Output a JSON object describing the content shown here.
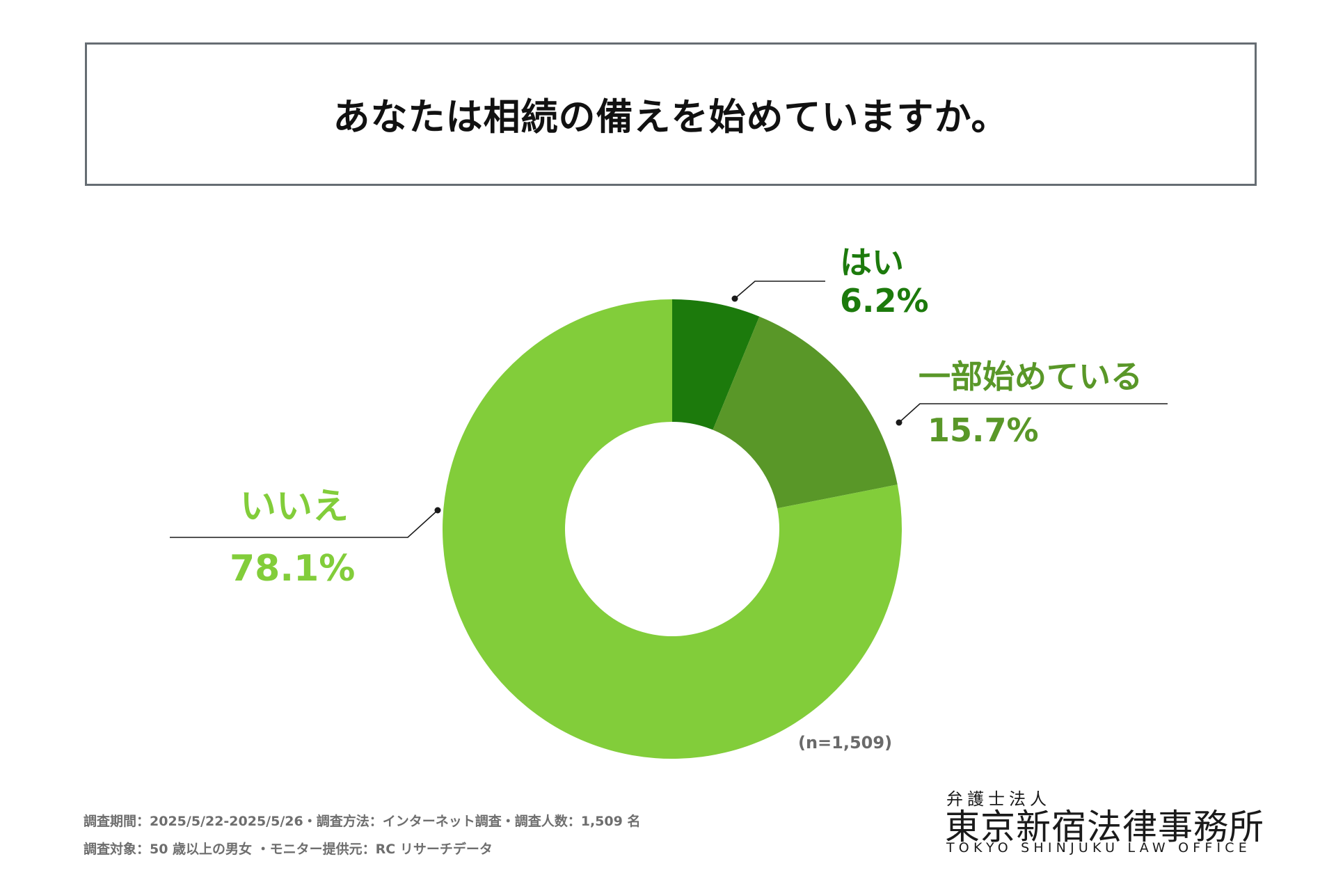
{
  "title": "あなたは相続の備えを始めていますか。",
  "chart_data": {
    "type": "pie",
    "variant": "donut",
    "title": "あなたは相続の備えを始めていますか。",
    "categories": [
      "はい",
      "一部始めている",
      "いいえ"
    ],
    "values": [
      6.2,
      15.7,
      78.1
    ],
    "value_labels": [
      "6.2%",
      "15.7%",
      "78.1%"
    ],
    "colors": [
      "#1c7a0c",
      "#599728",
      "#82cd3a"
    ],
    "label_colors": [
      "#1c7a0c",
      "#599728",
      "#82cd3a"
    ],
    "sample_size_label": "(n=1,509)",
    "start_angle": "12 o'clock",
    "direction": "clockwise"
  },
  "footnote": {
    "line1": "調査期間：2025/5/22-2025/5/26・調査方法：インターネット調査・調査人数：1,509 名",
    "line2": "調査対象：50 歳以上の男女 ・モニター提供元：RC リサーチデータ"
  },
  "logo": {
    "small": "弁護士法人",
    "main": "東京新宿法律事務所",
    "english": "TOKYO SHINJUKU LAW OFFICE"
  }
}
